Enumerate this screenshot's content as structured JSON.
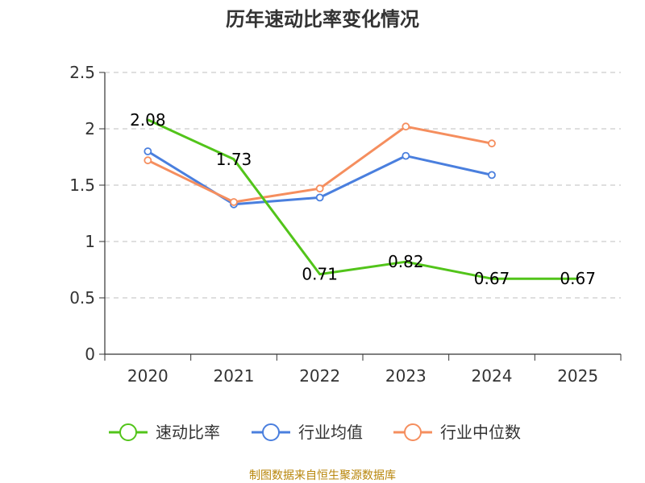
{
  "chart_data": {
    "type": "line",
    "title": "历年速动比率变化情况",
    "categories": [
      "2020",
      "2021",
      "2022",
      "2023",
      "2024",
      "2025"
    ],
    "ylim": [
      0,
      2.5
    ],
    "yticks": [
      "0",
      "0.5",
      "1",
      "1.5",
      "2",
      "2.5"
    ],
    "grid": true,
    "legend_position": "bottom",
    "series": [
      {
        "name": "速动比率",
        "color": "#52c41a",
        "values": [
          2.08,
          1.73,
          0.71,
          0.82,
          0.67,
          0.67
        ],
        "labels": [
          "2.08",
          "1.73",
          "0.71",
          "0.82",
          "0.67",
          "0.67"
        ],
        "show_markers": false
      },
      {
        "name": "行业均值",
        "color": "#4a7fde",
        "values": [
          1.8,
          1.33,
          1.39,
          1.76,
          1.59,
          null
        ],
        "show_markers": true
      },
      {
        "name": "行业中位数",
        "color": "#f58e5e",
        "values": [
          1.72,
          1.35,
          1.47,
          2.02,
          1.87,
          null
        ],
        "show_markers": true
      }
    ],
    "source": "制图数据来自恒生聚源数据库"
  }
}
